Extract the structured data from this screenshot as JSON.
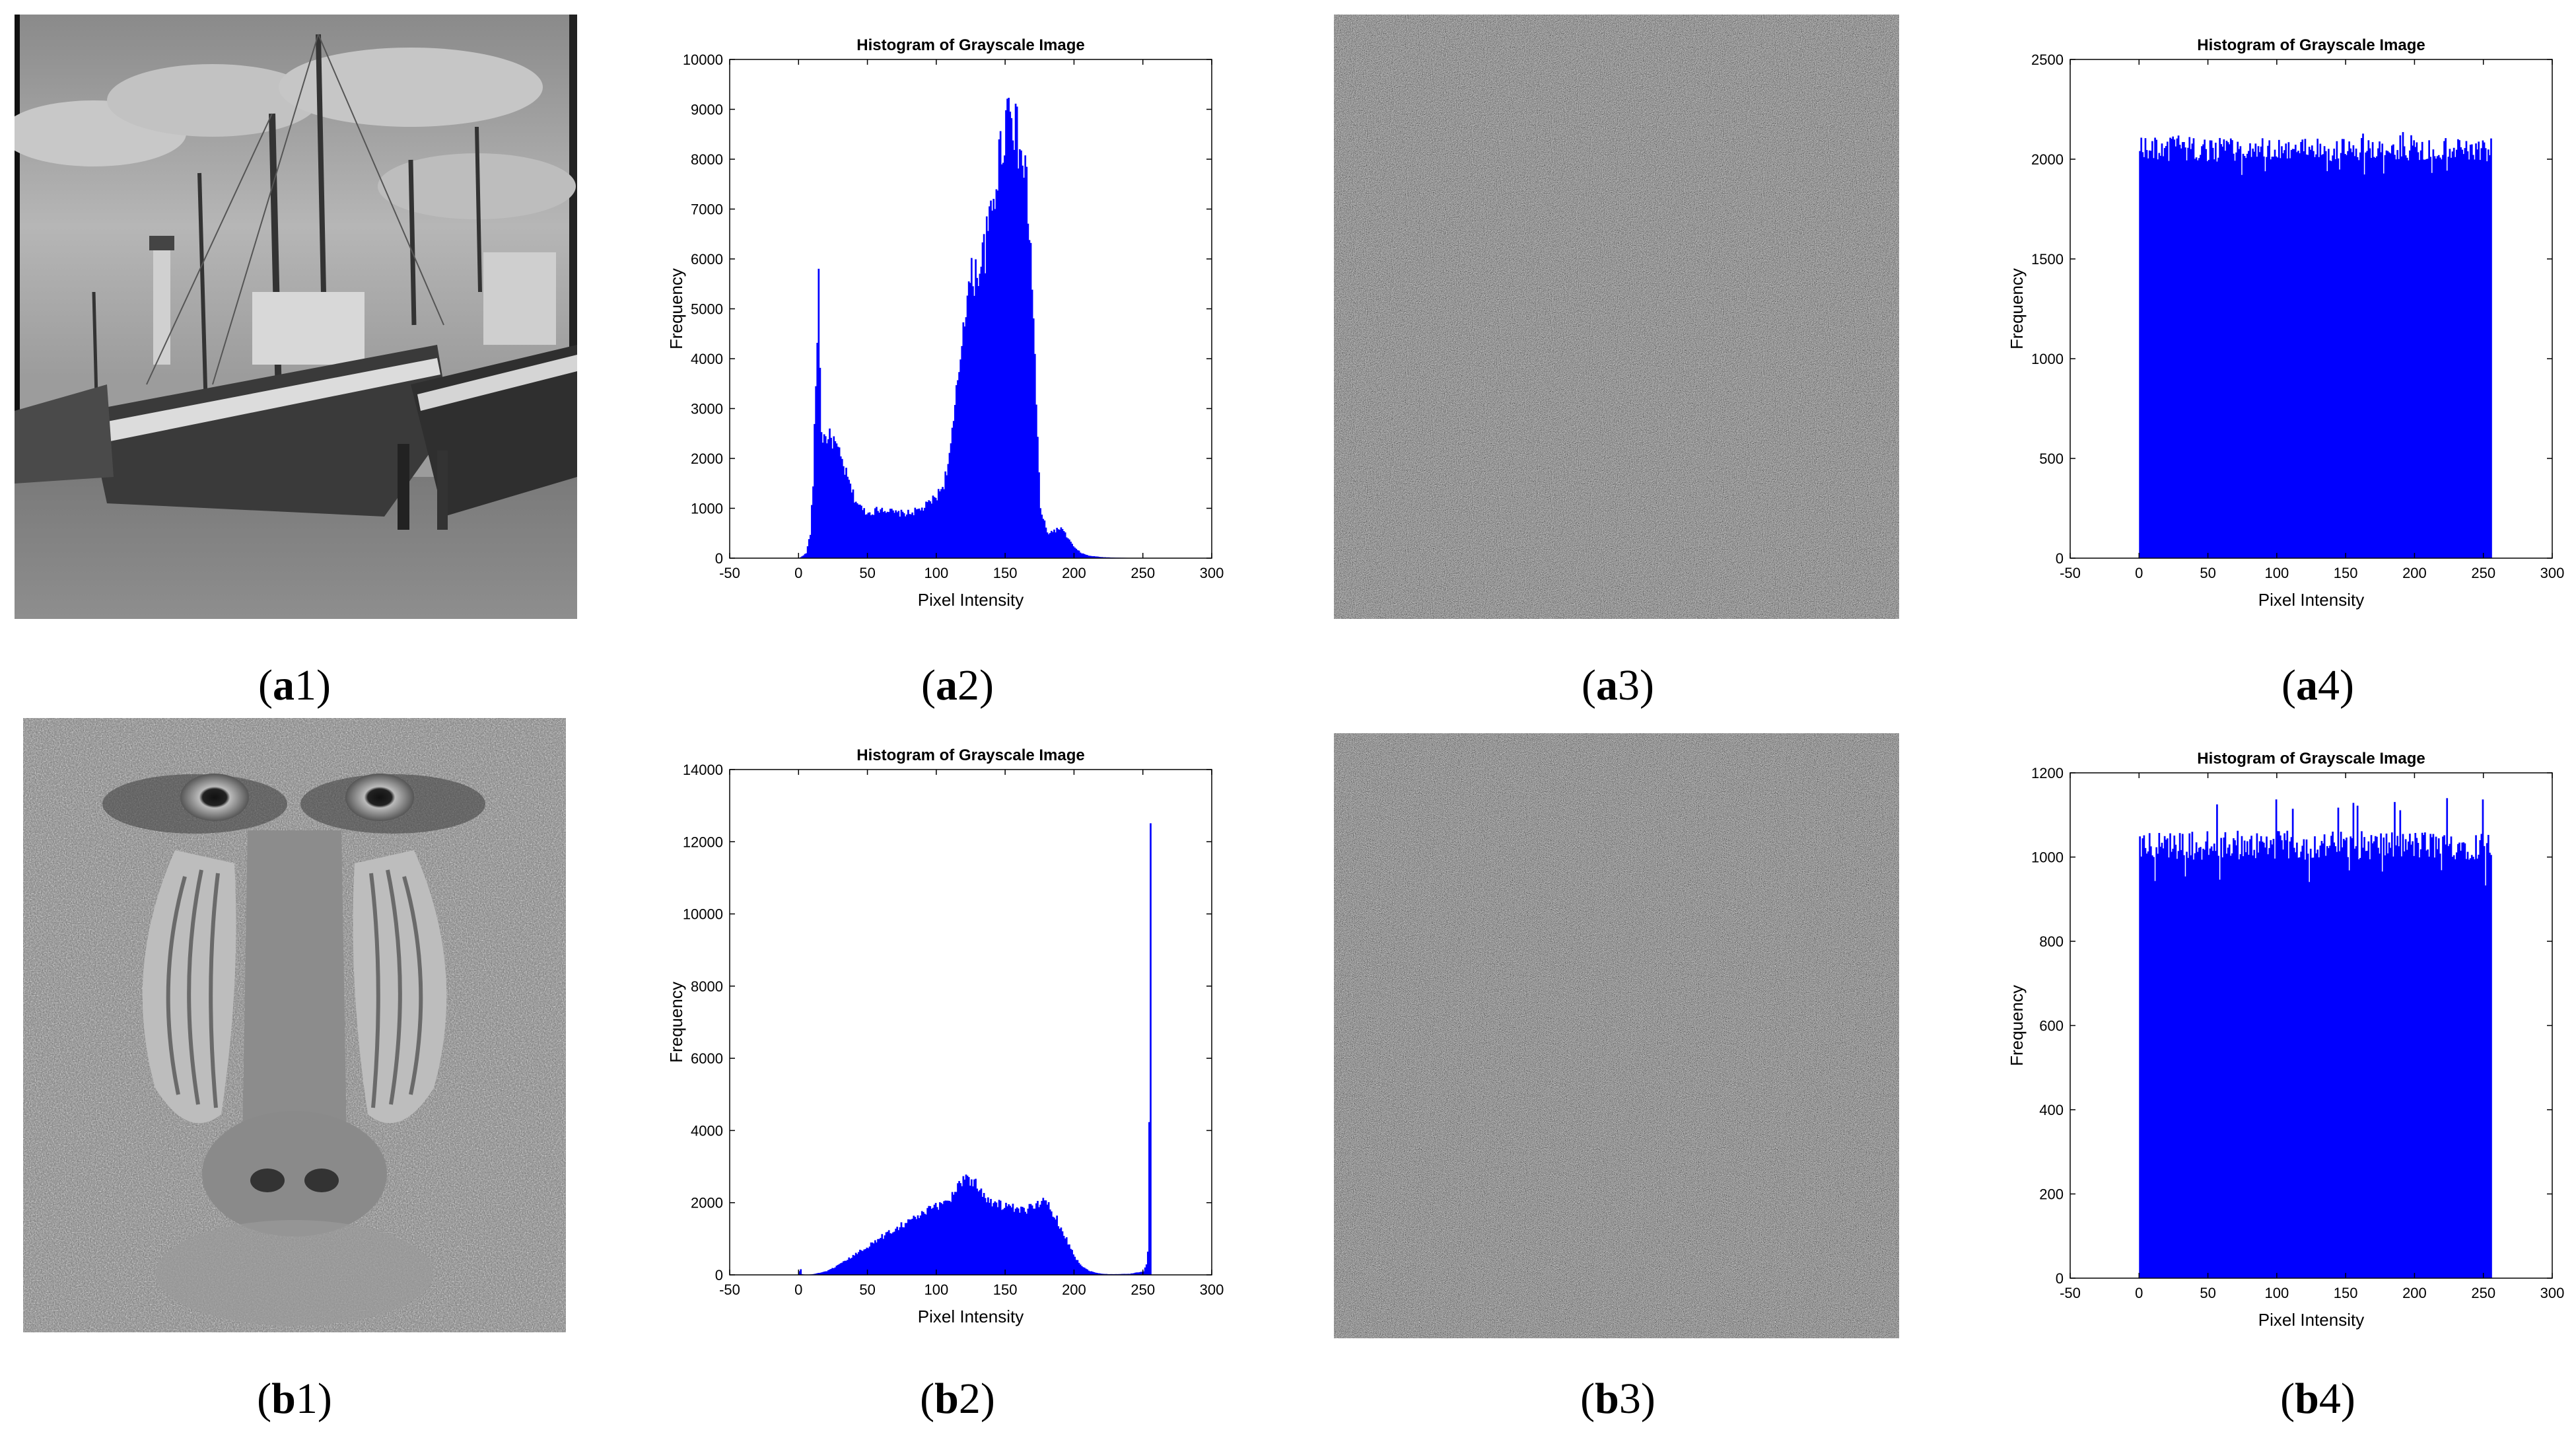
{
  "figure": {
    "captions": [
      {
        "id": "a1",
        "letter": "a",
        "num": "1"
      },
      {
        "id": "a2",
        "letter": "a",
        "num": "2"
      },
      {
        "id": "a3",
        "letter": "a",
        "num": "3"
      },
      {
        "id": "a4",
        "letter": "a",
        "num": "4"
      },
      {
        "id": "b1",
        "letter": "b",
        "num": "1"
      },
      {
        "id": "b2",
        "letter": "b",
        "num": "2"
      },
      {
        "id": "b3",
        "letter": "b",
        "num": "3"
      },
      {
        "id": "b4",
        "letter": "b",
        "num": "4"
      }
    ],
    "bar_color": "#0000ff"
  },
  "chart_data": [
    {
      "id": "a2",
      "type": "bar",
      "title": "Histogram of Grayscale Image",
      "xlabel": "Pixel Intensity",
      "ylabel": "Frequency",
      "xlim": [
        -50,
        300
      ],
      "ylim": [
        0,
        10000
      ],
      "xticks": [
        -50,
        0,
        50,
        100,
        150,
        200,
        250,
        300
      ],
      "yticks": [
        0,
        1000,
        2000,
        3000,
        4000,
        5000,
        6000,
        7000,
        8000,
        9000,
        10000
      ],
      "x": [
        0,
        5,
        8,
        10,
        12,
        14,
        15,
        16,
        18,
        20,
        25,
        30,
        35,
        40,
        45,
        50,
        55,
        60,
        65,
        70,
        80,
        90,
        100,
        105,
        110,
        115,
        120,
        125,
        130,
        135,
        140,
        145,
        150,
        153,
        155,
        157,
        160,
        165,
        170,
        172,
        175,
        180,
        185,
        190,
        195,
        200,
        205,
        210,
        220,
        230,
        255
      ],
      "values": [
        0,
        100,
        500,
        1500,
        3500,
        5600,
        4000,
        2500,
        2400,
        2450,
        2350,
        2000,
        1600,
        1200,
        1000,
        900,
        950,
        1000,
        950,
        900,
        900,
        1000,
        1250,
        1500,
        2200,
        3500,
        5000,
        5600,
        5800,
        6200,
        7000,
        8000,
        8800,
        9400,
        9000,
        8500,
        8200,
        7500,
        5000,
        3000,
        1000,
        500,
        550,
        600,
        400,
        200,
        100,
        50,
        20,
        10,
        0
      ]
    },
    {
      "id": "a4",
      "type": "bar",
      "title": "Histogram of Grayscale Image",
      "xlabel": "Pixel Intensity",
      "ylabel": "Frequency",
      "xlim": [
        -50,
        300
      ],
      "ylim": [
        0,
        2500
      ],
      "xticks": [
        -50,
        0,
        50,
        100,
        150,
        200,
        250,
        300
      ],
      "yticks": [
        0,
        500,
        1000,
        1500,
        2000,
        2500
      ],
      "x_range": [
        0,
        255
      ],
      "mean": 2048,
      "spread": 60,
      "min": 1910,
      "max": 2140
    },
    {
      "id": "b2",
      "type": "bar",
      "title": "Histogram of Grayscale Image",
      "xlabel": "Pixel Intensity",
      "ylabel": "Frequency",
      "xlim": [
        -50,
        300
      ],
      "ylim": [
        0,
        14000
      ],
      "xticks": [
        -50,
        0,
        50,
        100,
        150,
        200,
        250,
        300
      ],
      "yticks": [
        0,
        2000,
        4000,
        6000,
        8000,
        10000,
        12000,
        14000
      ],
      "x": [
        0,
        1,
        2,
        5,
        10,
        20,
        30,
        40,
        50,
        60,
        70,
        80,
        90,
        100,
        110,
        115,
        120,
        125,
        130,
        135,
        140,
        150,
        160,
        165,
        170,
        175,
        180,
        185,
        190,
        195,
        200,
        205,
        210,
        215,
        220,
        225,
        230,
        240,
        250,
        252,
        253,
        254,
        255
      ],
      "values": [
        100,
        150,
        20,
        0,
        20,
        100,
        300,
        550,
        800,
        1050,
        1300,
        1500,
        1700,
        1900,
        2150,
        2450,
        2750,
        2600,
        2450,
        2200,
        2000,
        1900,
        1750,
        1800,
        1950,
        2050,
        1950,
        1700,
        1300,
        900,
        500,
        250,
        120,
        60,
        30,
        20,
        20,
        30,
        100,
        300,
        600,
        4000,
        12900
      ]
    },
    {
      "id": "b4",
      "type": "bar",
      "title": "Histogram of Grayscale Image",
      "xlabel": "Pixel Intensity",
      "ylabel": "Frequency",
      "xlim": [
        -50,
        300
      ],
      "ylim": [
        0,
        1200
      ],
      "xticks": [
        -50,
        0,
        50,
        100,
        150,
        200,
        250,
        300
      ],
      "yticks": [
        0,
        200,
        400,
        600,
        800,
        1000,
        1200
      ],
      "x_range": [
        0,
        255
      ],
      "mean": 1028,
      "spread": 35,
      "min": 930,
      "max": 1140
    }
  ]
}
